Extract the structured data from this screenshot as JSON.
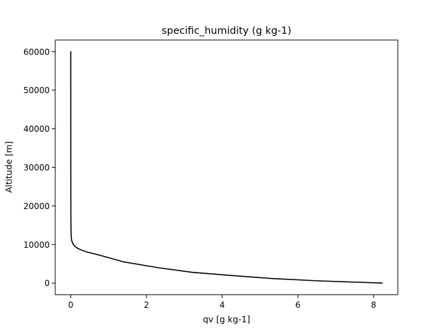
{
  "chart_data": {
    "type": "line",
    "title": "specific_humidity (g kg-1)",
    "xlabel": "qv [g kg-1]",
    "ylabel": "Altitude [m]",
    "xlim": [
      -0.41,
      8.64
    ],
    "ylim": [
      -3000,
      63000
    ],
    "xticks": [
      0,
      2,
      4,
      6,
      8
    ],
    "yticks": [
      0,
      10000,
      20000,
      30000,
      40000,
      50000,
      60000
    ],
    "grid": false,
    "line_color": "#000000",
    "series": [
      {
        "x": [
          8.23,
          6.5,
          5.3,
          4.2,
          3.2,
          2.3,
          1.4,
          0.7,
          0.45,
          0.3,
          0.18,
          0.1,
          0.05,
          0.02,
          0.01,
          0.005,
          0.002,
          0.001,
          0.0005,
          0.0002
        ],
        "y": [
          0,
          600,
          1200,
          2000,
          2800,
          4000,
          5500,
          7400,
          8000,
          8500,
          9000,
          9600,
          10300,
          11200,
          12500,
          14000,
          20000,
          30000,
          45000,
          60000
        ]
      }
    ]
  }
}
